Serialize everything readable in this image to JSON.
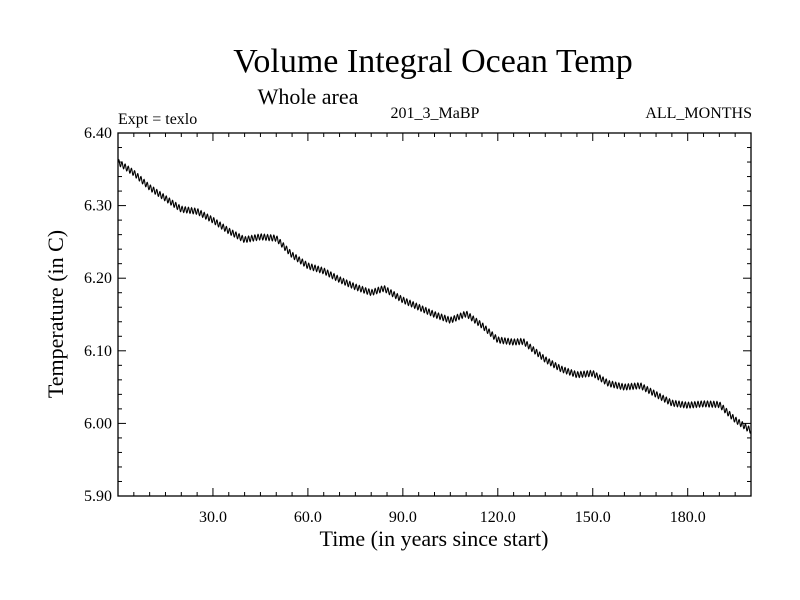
{
  "chart_data": {
    "type": "line",
    "title": "Volume Integral Ocean Temp",
    "subtitle": "Whole area",
    "experiment_label": "Expt = texlo",
    "run_label": "201_3_MaBP",
    "months_label": "ALL_MONTHS",
    "xlabel": "Time (in years since start)",
    "ylabel": "Temperature (in C)",
    "xlim": [
      0,
      200
    ],
    "ylim": [
      5.9,
      6.4
    ],
    "x_ticks": [
      30,
      60,
      90,
      120,
      150,
      180
    ],
    "x_tick_labels": [
      "30.0",
      "60.0",
      "90.0",
      "120.0",
      "150.0",
      "180.0"
    ],
    "y_ticks": [
      5.9,
      6.0,
      6.1,
      6.2,
      6.3,
      6.4
    ],
    "y_tick_labels": [
      "5.90",
      "6.00",
      "6.10",
      "6.20",
      "6.30",
      "6.40"
    ],
    "seasonal_amplitude": 0.004,
    "series": [
      {
        "name": "Volume integral ocean temperature",
        "color": "#000000",
        "x": [
          0,
          5,
          10,
          15,
          20,
          25,
          30,
          35,
          40,
          45,
          50,
          55,
          60,
          65,
          70,
          75,
          80,
          84,
          90,
          95,
          100,
          105,
          110,
          115,
          120,
          125,
          128,
          135,
          140,
          145,
          150,
          155,
          160,
          165,
          170,
          175,
          180,
          185,
          190,
          195,
          200
        ],
        "y": [
          6.36,
          6.345,
          6.325,
          6.31,
          6.295,
          6.292,
          6.28,
          6.265,
          6.253,
          6.257,
          6.255,
          6.232,
          6.217,
          6.21,
          6.198,
          6.188,
          6.18,
          6.186,
          6.17,
          6.16,
          6.15,
          6.142,
          6.151,
          6.135,
          6.115,
          6.112,
          6.113,
          6.088,
          6.075,
          6.067,
          6.069,
          6.055,
          6.05,
          6.052,
          6.04,
          6.028,
          6.025,
          6.027,
          6.026,
          6.005,
          5.99
        ]
      }
    ]
  }
}
